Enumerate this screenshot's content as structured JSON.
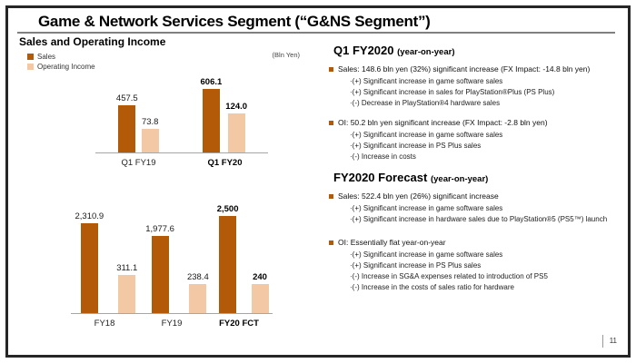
{
  "slide": {
    "title": "Game & Network Services Segment (“G&NS Segment”)",
    "page_number": "11"
  },
  "colors": {
    "sales": "#b25a08",
    "operating_income": "#f2c9a4",
    "frame_border": "#262626"
  },
  "left": {
    "section_title": "Sales and Operating Income",
    "unit_label": "(Bln Yen)",
    "legend": [
      {
        "label": "Sales",
        "color": "#b25a08"
      },
      {
        "label": "Operating Income",
        "color": "#f2c9a4"
      }
    ]
  },
  "chart_data": [
    {
      "type": "bar",
      "title": "Sales and Operating Income — Quarterly",
      "unit": "Bln Yen",
      "categories": [
        "Q1 FY19",
        "Q1 FY20"
      ],
      "emphasized_category": "Q1 FY20",
      "grid": false,
      "legend_position": "top-left",
      "series": [
        {
          "name": "Sales",
          "values": [
            457.5,
            606.1
          ],
          "labels": [
            "457.5",
            "606.1"
          ],
          "color": "#b25a08",
          "scale_max": 610
        },
        {
          "name": "Operating Income",
          "values": [
            73.8,
            124.0
          ],
          "labels": [
            "73.8",
            "124.0"
          ],
          "color": "#f2c9a4",
          "scale_max": 200
        }
      ]
    },
    {
      "type": "bar",
      "title": "Sales and Operating Income — Annual",
      "unit": "Bln Yen",
      "categories": [
        "FY18",
        "FY19",
        "FY20 FCT"
      ],
      "emphasized_category": "FY20 FCT",
      "grid": false,
      "series": [
        {
          "name": "Sales",
          "values": [
            2310.9,
            1977.6,
            2500
          ],
          "labels": [
            "2,310.9",
            "1,977.6",
            "2,500"
          ],
          "color": "#b25a08",
          "scale_max": 2500
        },
        {
          "name": "Operating Income",
          "values": [
            311.1,
            238.4,
            240
          ],
          "labels": [
            "311.1",
            "238.4",
            "240"
          ],
          "color": "#f2c9a4",
          "scale_max": 800
        }
      ]
    }
  ],
  "right": {
    "sections": [
      {
        "heading": "Q1 FY2020",
        "heading_suffix": "(year-on-year)",
        "bullets": [
          {
            "text": "Sales: 148.6 bln yen (32%) significant increase (FX Impact: -14.8 bln yen)",
            "sub_items": [
              "·(+) Significant increase in game software sales",
              "·(+) Significant increase in sales for PlayStation®Plus (PS Plus)",
              "·(-) Decrease in PlayStation®4 hardware sales"
            ]
          },
          {
            "text": "OI: 50.2 bln yen significant increase (FX Impact: -2.8 bln yen)",
            "sub_items": [
              "·(+) Significant increase in game software sales",
              "·(+) Significant increase in PS Plus sales",
              "·(-) Increase in costs"
            ]
          }
        ]
      },
      {
        "heading": "FY2020 Forecast",
        "heading_suffix": "(year-on-year)",
        "bullets": [
          {
            "text": "Sales: 522.4 bln yen (26%) significant increase",
            "sub_items": [
              "·(+) Significant increase in game software sales",
              "·(+) Significant increase in hardware sales due to PlayStation®5 (PS5™) launch"
            ]
          },
          {
            "text": "OI: Essentially flat year-on-year",
            "sub_items": [
              "·(+) Significant increase in game software sales",
              "·(+) Significant increase in PS Plus sales",
              "·(-) Increase in SG&A expenses related to introduction of PS5",
              "·(-) Increase in the costs of sales ratio for hardware"
            ]
          }
        ]
      }
    ]
  }
}
